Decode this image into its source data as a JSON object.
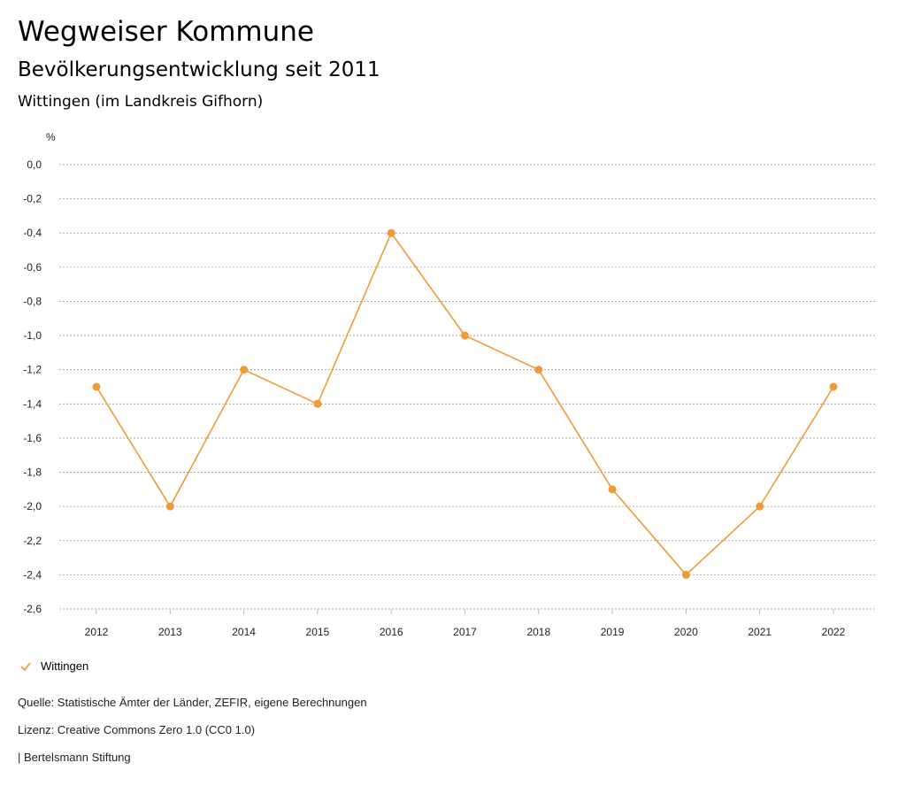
{
  "header": {
    "title": "Wegweiser Kommune",
    "subtitle": "Bevölkerungsentwicklung seit 2011",
    "region": "Wittingen (im Landkreis Gifhorn)"
  },
  "chart_data": {
    "type": "line",
    "ylabel": "%",
    "ylim": [
      -2.6,
      0.0
    ],
    "yticks": [
      "0,0",
      "-0,2",
      "-0,4",
      "-0,6",
      "-0,8",
      "-1,0",
      "-1,2",
      "-1,4",
      "-1,6",
      "-1,8",
      "-2,0",
      "-2,2",
      "-2,4",
      "-2,6"
    ],
    "categories": [
      "2012",
      "2013",
      "2014",
      "2015",
      "2016",
      "2017",
      "2018",
      "2019",
      "2020",
      "2021",
      "2022"
    ],
    "series": [
      {
        "name": "Wittingen",
        "color": "#ee9b35",
        "values": [
          -1.3,
          -2.0,
          -1.2,
          -1.4,
          -0.4,
          -1.0,
          -1.2,
          -1.9,
          -2.4,
          -2.0,
          -1.3
        ]
      }
    ],
    "grid": true,
    "legend": "bottom-left"
  },
  "footer": {
    "source": "Quelle: Statistische Ämter der Länder, ZEFIR, eigene Berechnungen",
    "license": "Lizenz: Creative Commons Zero 1.0 (CC0 1.0)",
    "brand": "| Bertelsmann Stiftung"
  }
}
